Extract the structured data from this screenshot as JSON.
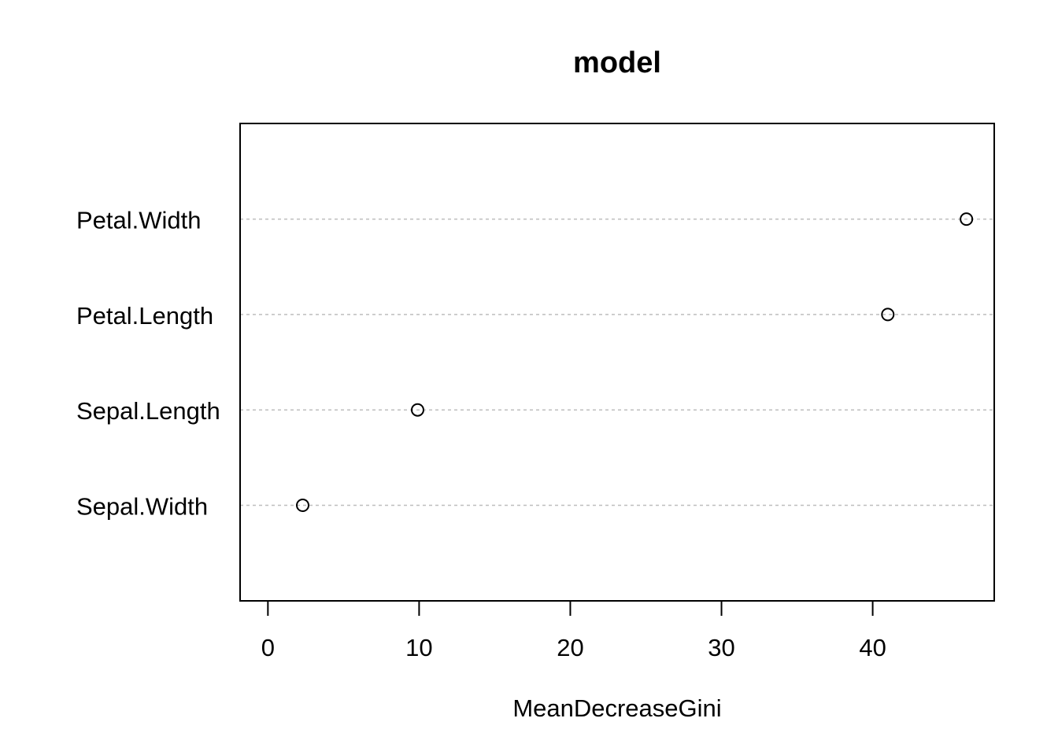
{
  "chart_data": {
    "type": "scatter",
    "title": "model",
    "xlabel": "MeanDecreaseGini",
    "ylabel": "",
    "xlim": [
      -1.84,
      48.04
    ],
    "xticks": [
      0,
      10,
      20,
      30,
      40
    ],
    "xtick_labels": [
      "0",
      "10",
      "20",
      "30",
      "40"
    ],
    "categories": [
      "Sepal.Width",
      "Sepal.Length",
      "Petal.Length",
      "Petal.Width"
    ],
    "values": [
      2.3,
      9.9,
      41.0,
      46.2
    ],
    "grid": "dotted horizontal guide lines",
    "legend": "none"
  }
}
